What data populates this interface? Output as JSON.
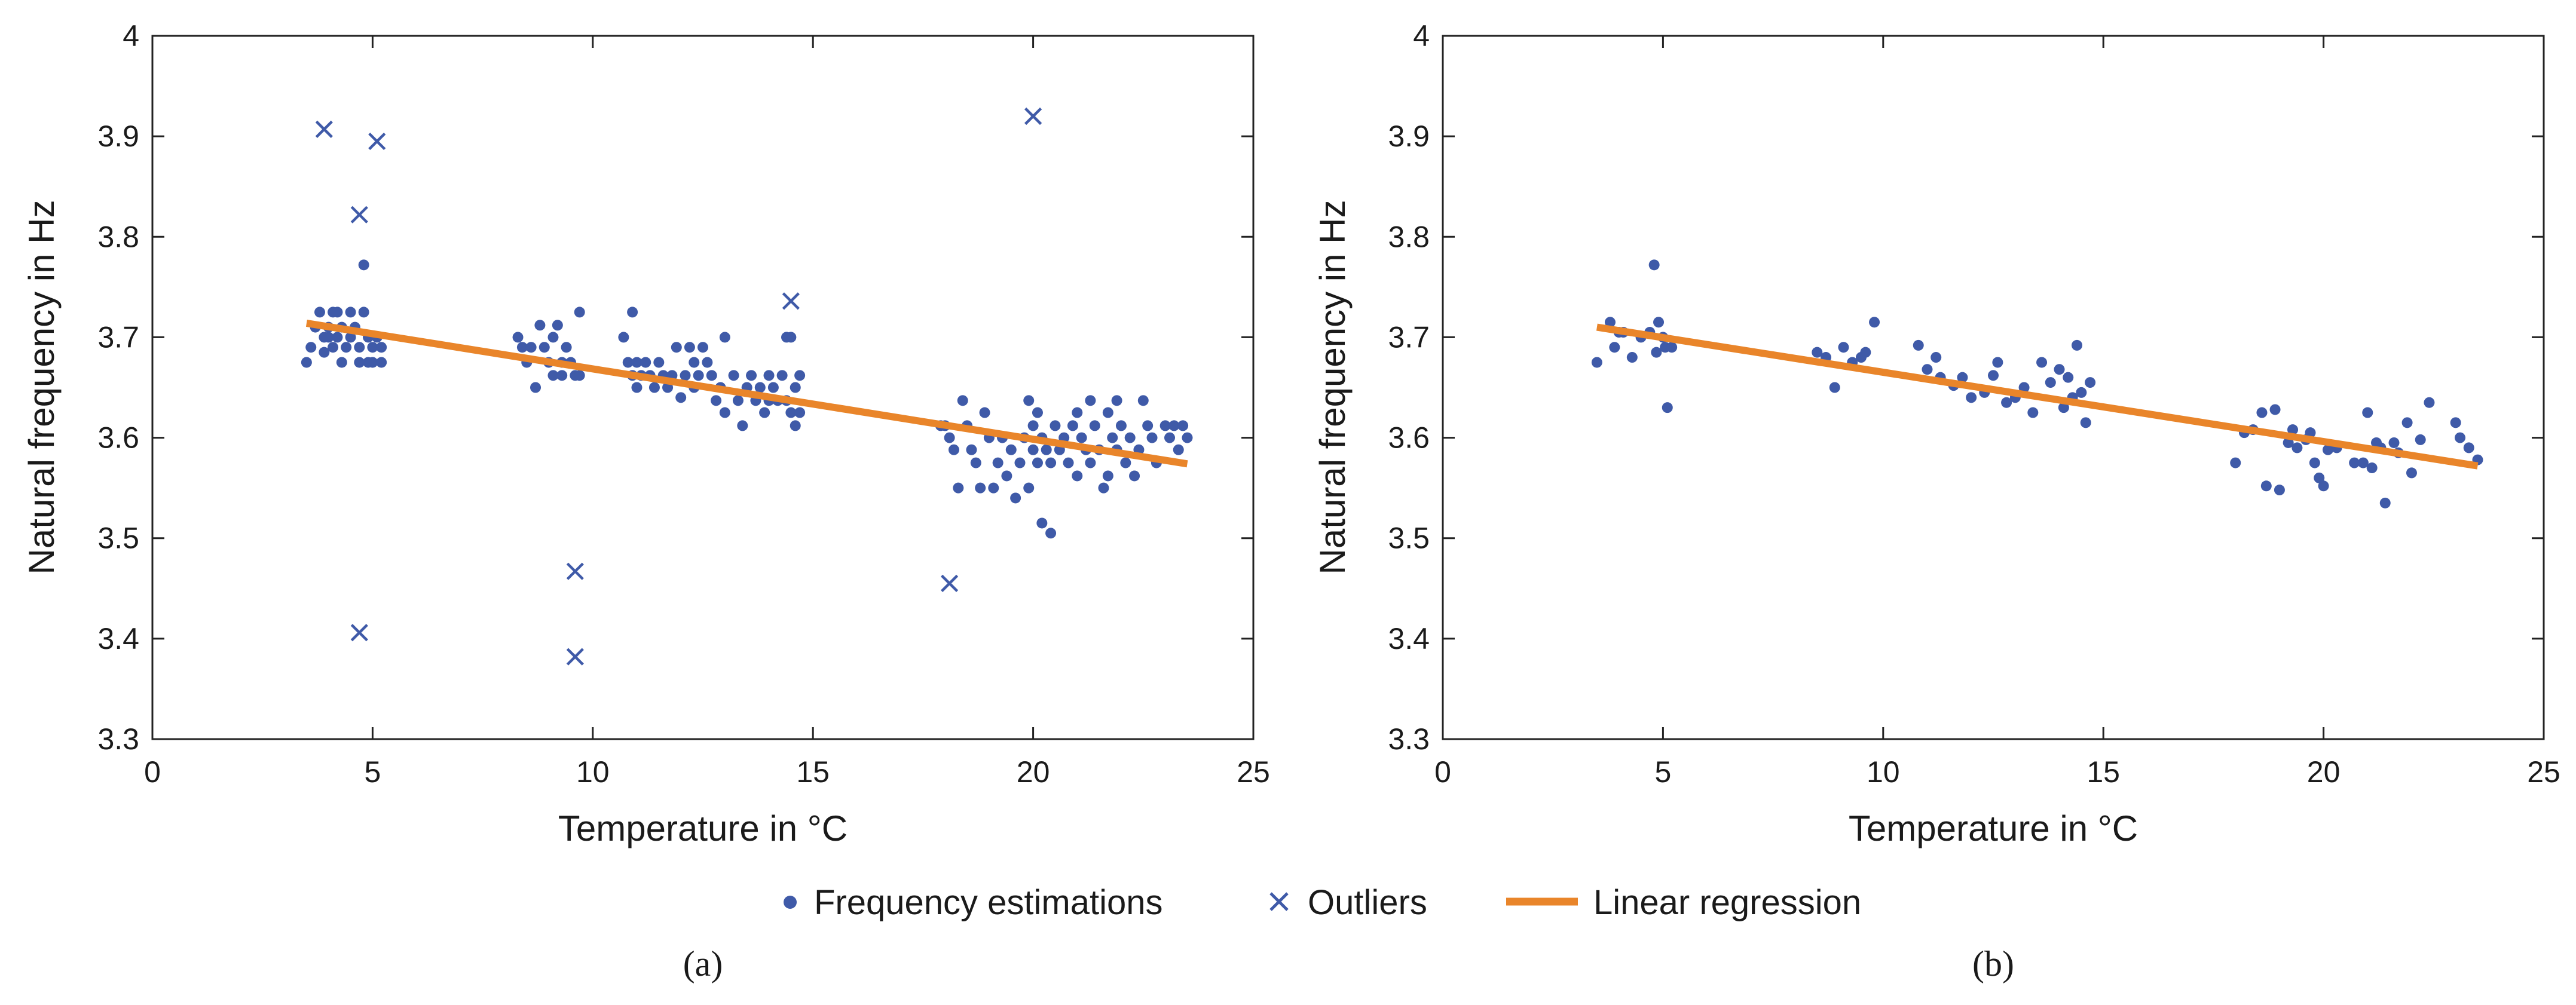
{
  "colors": {
    "points": "#3f5aa8",
    "regression": "#e9852a",
    "axis": "#222222",
    "text": "#1a1a1a"
  },
  "legend": {
    "items": [
      {
        "marker": "dot",
        "label": "Frequency estimations"
      },
      {
        "marker": "cross",
        "label": "Outliers"
      },
      {
        "marker": "line",
        "label": "Linear regression"
      }
    ]
  },
  "chart_data": [
    {
      "type": "scatter",
      "caption": "(a)",
      "xlabel": "Temperature in °C",
      "ylabel": "Natural frequency in Hz",
      "xlim": [
        0,
        25
      ],
      "ylim": [
        3.3,
        4
      ],
      "xticks": [
        0,
        5,
        10,
        15,
        20,
        25
      ],
      "yticks": [
        3.3,
        3.4,
        3.5,
        3.6,
        3.7,
        3.8,
        3.9,
        4
      ],
      "ytick_labels": [
        "3.3",
        "3.4",
        "3.5",
        "3.6",
        "3.7",
        "3.8",
        "3.9",
        "4"
      ],
      "grid": false,
      "series": [
        {
          "name": "Frequency estimations",
          "marker": "dot",
          "points": [
            [
              3.5,
              3.675
            ],
            [
              3.6,
              3.69
            ],
            [
              3.7,
              3.71
            ],
            [
              3.8,
              3.725
            ],
            [
              3.9,
              3.7
            ],
            [
              3.9,
              3.685
            ],
            [
              4.0,
              3.71
            ],
            [
              4.0,
              3.7
            ],
            [
              4.1,
              3.725
            ],
            [
              4.1,
              3.69
            ],
            [
              4.2,
              3.725
            ],
            [
              4.2,
              3.7
            ],
            [
              4.3,
              3.675
            ],
            [
              4.3,
              3.71
            ],
            [
              4.4,
              3.69
            ],
            [
              4.5,
              3.7
            ],
            [
              4.5,
              3.725
            ],
            [
              4.6,
              3.71
            ],
            [
              4.7,
              3.675
            ],
            [
              4.7,
              3.69
            ],
            [
              4.8,
              3.772
            ],
            [
              4.8,
              3.725
            ],
            [
              4.9,
              3.7
            ],
            [
              4.9,
              3.675
            ],
            [
              5.0,
              3.69
            ],
            [
              5.0,
              3.675
            ],
            [
              5.1,
              3.7
            ],
            [
              5.2,
              3.69
            ],
            [
              5.2,
              3.675
            ],
            [
              8.3,
              3.7
            ],
            [
              8.4,
              3.69
            ],
            [
              8.5,
              3.675
            ],
            [
              8.6,
              3.69
            ],
            [
              8.7,
              3.65
            ],
            [
              8.8,
              3.712
            ],
            [
              8.9,
              3.69
            ],
            [
              9.0,
              3.675
            ],
            [
              9.1,
              3.7
            ],
            [
              9.1,
              3.662
            ],
            [
              9.2,
              3.712
            ],
            [
              9.3,
              3.675
            ],
            [
              9.3,
              3.662
            ],
            [
              9.4,
              3.69
            ],
            [
              9.5,
              3.675
            ],
            [
              9.6,
              3.662
            ],
            [
              9.7,
              3.725
            ],
            [
              9.7,
              3.662
            ],
            [
              10.7,
              3.7
            ],
            [
              10.8,
              3.675
            ],
            [
              10.9,
              3.725
            ],
            [
              10.9,
              3.662
            ],
            [
              11.0,
              3.675
            ],
            [
              11.0,
              3.65
            ],
            [
              11.1,
              3.662
            ],
            [
              11.2,
              3.675
            ],
            [
              11.3,
              3.662
            ],
            [
              11.4,
              3.65
            ],
            [
              11.5,
              3.675
            ],
            [
              11.6,
              3.662
            ],
            [
              11.7,
              3.65
            ],
            [
              11.8,
              3.662
            ],
            [
              11.9,
              3.69
            ],
            [
              12.0,
              3.64
            ],
            [
              12.1,
              3.662
            ],
            [
              12.2,
              3.69
            ],
            [
              12.3,
              3.675
            ],
            [
              12.3,
              3.65
            ],
            [
              12.4,
              3.662
            ],
            [
              12.5,
              3.69
            ],
            [
              12.6,
              3.675
            ],
            [
              12.7,
              3.662
            ],
            [
              12.8,
              3.637
            ],
            [
              12.9,
              3.65
            ],
            [
              13.0,
              3.7
            ],
            [
              13.0,
              3.625
            ],
            [
              13.2,
              3.662
            ],
            [
              13.3,
              3.637
            ],
            [
              13.4,
              3.612
            ],
            [
              13.5,
              3.65
            ],
            [
              13.6,
              3.662
            ],
            [
              13.7,
              3.637
            ],
            [
              13.8,
              3.65
            ],
            [
              13.9,
              3.625
            ],
            [
              14.0,
              3.662
            ],
            [
              14.0,
              3.637
            ],
            [
              14.1,
              3.65
            ],
            [
              14.2,
              3.637
            ],
            [
              14.3,
              3.662
            ],
            [
              14.4,
              3.7
            ],
            [
              14.4,
              3.637
            ],
            [
              14.5,
              3.7
            ],
            [
              14.5,
              3.625
            ],
            [
              14.6,
              3.65
            ],
            [
              14.6,
              3.612
            ],
            [
              14.7,
              3.662
            ],
            [
              14.7,
              3.625
            ],
            [
              17.9,
              3.612
            ],
            [
              18.0,
              3.612
            ],
            [
              18.1,
              3.6
            ],
            [
              18.2,
              3.588
            ],
            [
              18.3,
              3.55
            ],
            [
              18.4,
              3.637
            ],
            [
              18.5,
              3.612
            ],
            [
              18.6,
              3.588
            ],
            [
              18.7,
              3.575
            ],
            [
              18.8,
              3.55
            ],
            [
              18.9,
              3.625
            ],
            [
              19.0,
              3.6
            ],
            [
              19.1,
              3.55
            ],
            [
              19.2,
              3.575
            ],
            [
              19.3,
              3.6
            ],
            [
              19.4,
              3.562
            ],
            [
              19.5,
              3.588
            ],
            [
              19.6,
              3.54
            ],
            [
              19.7,
              3.575
            ],
            [
              19.8,
              3.6
            ],
            [
              19.9,
              3.637
            ],
            [
              19.9,
              3.55
            ],
            [
              20.0,
              3.588
            ],
            [
              20.0,
              3.612
            ],
            [
              20.1,
              3.575
            ],
            [
              20.1,
              3.625
            ],
            [
              20.2,
              3.6
            ],
            [
              20.2,
              3.515
            ],
            [
              20.3,
              3.588
            ],
            [
              20.4,
              3.575
            ],
            [
              20.4,
              3.505
            ],
            [
              20.5,
              3.612
            ],
            [
              20.6,
              3.588
            ],
            [
              20.7,
              3.6
            ],
            [
              20.8,
              3.575
            ],
            [
              20.9,
              3.612
            ],
            [
              21.0,
              3.625
            ],
            [
              21.0,
              3.562
            ],
            [
              21.1,
              3.6
            ],
            [
              21.2,
              3.588
            ],
            [
              21.3,
              3.637
            ],
            [
              21.3,
              3.575
            ],
            [
              21.4,
              3.612
            ],
            [
              21.5,
              3.588
            ],
            [
              21.6,
              3.55
            ],
            [
              21.7,
              3.625
            ],
            [
              21.7,
              3.562
            ],
            [
              21.8,
              3.6
            ],
            [
              21.9,
              3.637
            ],
            [
              21.9,
              3.588
            ],
            [
              22.0,
              3.612
            ],
            [
              22.1,
              3.575
            ],
            [
              22.2,
              3.6
            ],
            [
              22.3,
              3.562
            ],
            [
              22.4,
              3.588
            ],
            [
              22.5,
              3.637
            ],
            [
              22.6,
              3.612
            ],
            [
              22.7,
              3.6
            ],
            [
              22.8,
              3.575
            ],
            [
              23.0,
              3.612
            ],
            [
              23.1,
              3.6
            ],
            [
              23.2,
              3.612
            ],
            [
              23.3,
              3.588
            ],
            [
              23.4,
              3.612
            ],
            [
              23.5,
              3.6
            ]
          ]
        },
        {
          "name": "Outliers",
          "marker": "cross",
          "points": [
            [
              3.9,
              3.907
            ],
            [
              4.7,
              3.822
            ],
            [
              5.1,
              3.895
            ],
            [
              4.7,
              3.406
            ],
            [
              9.6,
              3.467
            ],
            [
              9.6,
              3.382
            ],
            [
              14.5,
              3.736
            ],
            [
              18.1,
              3.455
            ],
            [
              20.0,
              3.92
            ]
          ]
        },
        {
          "name": "Linear regression",
          "marker": "line",
          "points": [
            [
              3.5,
              3.714
            ],
            [
              23.5,
              3.574
            ]
          ]
        }
      ]
    },
    {
      "type": "scatter",
      "caption": "(b)",
      "xlabel": "Temperature in °C",
      "ylabel": "Natural frequency in Hz",
      "xlim": [
        0,
        25
      ],
      "ylim": [
        3.3,
        4
      ],
      "xticks": [
        0,
        5,
        10,
        15,
        20,
        25
      ],
      "yticks": [
        3.3,
        3.4,
        3.5,
        3.6,
        3.7,
        3.8,
        3.9,
        4
      ],
      "ytick_labels": [
        "3.3",
        "3.4",
        "3.5",
        "3.6",
        "3.7",
        "3.8",
        "3.9",
        "4"
      ],
      "grid": false,
      "series": [
        {
          "name": "Frequency estimations",
          "marker": "dot",
          "points": [
            [
              3.5,
              3.675
            ],
            [
              3.8,
              3.715
            ],
            [
              3.9,
              3.69
            ],
            [
              4.0,
              3.705
            ],
            [
              4.1,
              3.705
            ],
            [
              4.3,
              3.68
            ],
            [
              4.5,
              3.7
            ],
            [
              4.7,
              3.705
            ],
            [
              4.8,
              3.772
            ],
            [
              4.85,
              3.685
            ],
            [
              4.9,
              3.715
            ],
            [
              5.0,
              3.7
            ],
            [
              5.05,
              3.69
            ],
            [
              5.1,
              3.63
            ],
            [
              5.2,
              3.69
            ],
            [
              8.5,
              3.685
            ],
            [
              8.7,
              3.68
            ],
            [
              8.9,
              3.65
            ],
            [
              9.1,
              3.69
            ],
            [
              9.3,
              3.675
            ],
            [
              9.5,
              3.68
            ],
            [
              9.6,
              3.685
            ],
            [
              9.8,
              3.715
            ],
            [
              10.8,
              3.692
            ],
            [
              11.0,
              3.668
            ],
            [
              11.2,
              3.68
            ],
            [
              11.3,
              3.66
            ],
            [
              11.6,
              3.652
            ],
            [
              11.8,
              3.66
            ],
            [
              12.0,
              3.64
            ],
            [
              12.3,
              3.645
            ],
            [
              12.5,
              3.662
            ],
            [
              12.6,
              3.675
            ],
            [
              12.8,
              3.635
            ],
            [
              13.0,
              3.64
            ],
            [
              13.2,
              3.65
            ],
            [
              13.4,
              3.625
            ],
            [
              13.6,
              3.675
            ],
            [
              13.8,
              3.655
            ],
            [
              14.0,
              3.668
            ],
            [
              14.1,
              3.63
            ],
            [
              14.2,
              3.66
            ],
            [
              14.3,
              3.64
            ],
            [
              14.4,
              3.692
            ],
            [
              14.5,
              3.645
            ],
            [
              14.6,
              3.615
            ],
            [
              14.7,
              3.655
            ],
            [
              18.0,
              3.575
            ],
            [
              18.2,
              3.605
            ],
            [
              18.4,
              3.608
            ],
            [
              18.6,
              3.625
            ],
            [
              18.7,
              3.552
            ],
            [
              18.9,
              3.628
            ],
            [
              19.0,
              3.548
            ],
            [
              19.2,
              3.595
            ],
            [
              19.3,
              3.608
            ],
            [
              19.4,
              3.59
            ],
            [
              19.6,
              3.598
            ],
            [
              19.7,
              3.605
            ],
            [
              19.8,
              3.575
            ],
            [
              19.9,
              3.56
            ],
            [
              20.0,
              3.552
            ],
            [
              20.1,
              3.588
            ],
            [
              20.3,
              3.59
            ],
            [
              20.7,
              3.575
            ],
            [
              20.9,
              3.575
            ],
            [
              21.0,
              3.625
            ],
            [
              21.1,
              3.57
            ],
            [
              21.2,
              3.595
            ],
            [
              21.3,
              3.59
            ],
            [
              21.4,
              3.535
            ],
            [
              21.6,
              3.595
            ],
            [
              21.7,
              3.585
            ],
            [
              21.9,
              3.615
            ],
            [
              22.0,
              3.565
            ],
            [
              22.2,
              3.598
            ],
            [
              22.4,
              3.635
            ],
            [
              23.0,
              3.615
            ],
            [
              23.1,
              3.6
            ],
            [
              23.3,
              3.59
            ],
            [
              23.5,
              3.578
            ]
          ]
        },
        {
          "name": "Linear regression",
          "marker": "line",
          "points": [
            [
              3.5,
              3.71
            ],
            [
              23.5,
              3.572
            ]
          ]
        }
      ]
    }
  ]
}
